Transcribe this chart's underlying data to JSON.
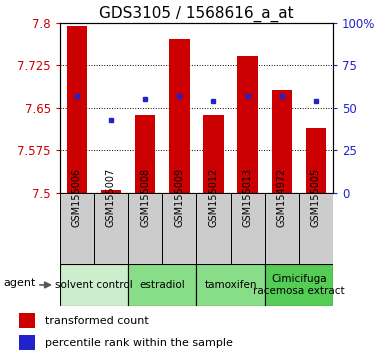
{
  "title": "GDS3105 / 1568616_a_at",
  "samples": [
    "GSM155006",
    "GSM155007",
    "GSM155008",
    "GSM155009",
    "GSM155012",
    "GSM155013",
    "GSM154972",
    "GSM155005"
  ],
  "bar_values": [
    7.795,
    7.506,
    7.638,
    7.772,
    7.638,
    7.742,
    7.682,
    7.615
  ],
  "percentile_values": [
    57,
    43,
    55,
    57,
    54,
    57,
    57,
    54
  ],
  "bar_bottom": 7.5,
  "ylim_left": [
    7.5,
    7.8
  ],
  "y_ticks_left": [
    7.5,
    7.575,
    7.65,
    7.725,
    7.8
  ],
  "y_tick_labels_left": [
    "7.5",
    "7.575",
    "7.65",
    "7.725",
    "7.8"
  ],
  "y_ticks_right": [
    0,
    25,
    50,
    75,
    100
  ],
  "y_tick_labels_right": [
    "0",
    "25",
    "50",
    "75",
    "100%"
  ],
  "bar_color": "#cc0000",
  "dot_color": "#2222cc",
  "groups": [
    {
      "label": "solvent control",
      "start": 0,
      "end": 1,
      "color": "#cceecc"
    },
    {
      "label": "estradiol",
      "start": 2,
      "end": 3,
      "color": "#88dd88"
    },
    {
      "label": "tamoxifen",
      "start": 4,
      "end": 5,
      "color": "#88dd88"
    },
    {
      "label": "Cimicifuga\nracemosa extract",
      "start": 6,
      "end": 7,
      "color": "#55cc55"
    }
  ],
  "sample_box_color": "#cccccc",
  "agent_label": "agent",
  "legend_bar_label": "transformed count",
  "legend_dot_label": "percentile rank within the sample",
  "title_fontsize": 11,
  "tick_fontsize": 8.5,
  "sample_fontsize": 7,
  "group_fontsize": 7.5,
  "legend_fontsize": 8,
  "agent_fontsize": 8
}
